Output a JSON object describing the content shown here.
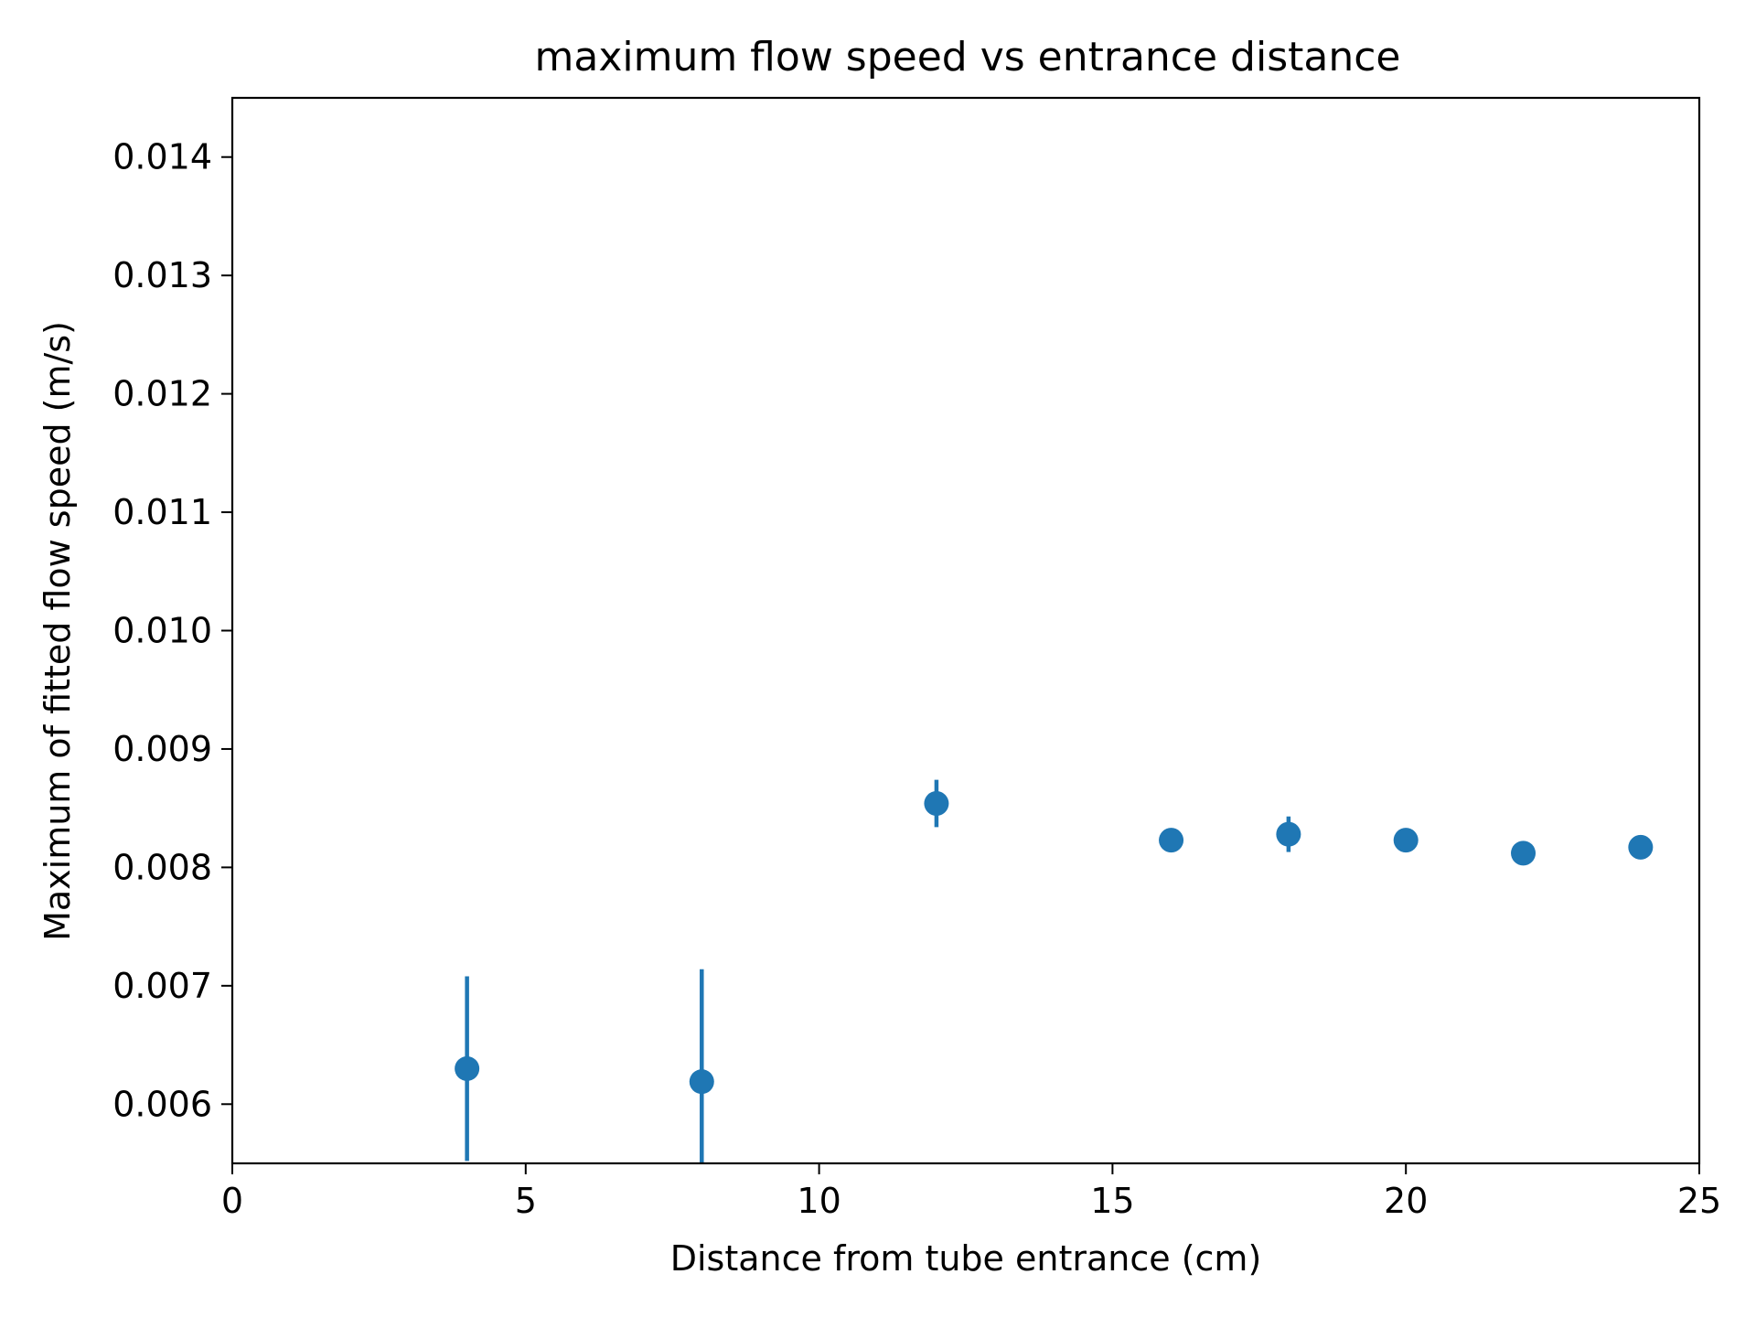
{
  "chart_data": {
    "type": "scatter",
    "title": "maximum flow speed vs entrance distance",
    "xlabel": "Distance from tube entrance (cm)",
    "ylabel": "Maximum of fitted flow speed (m/s)",
    "xlim": [
      0,
      25
    ],
    "ylim": [
      0.0055,
      0.0145
    ],
    "xticks": [
      0,
      5,
      10,
      15,
      20,
      25
    ],
    "xtick_labels": [
      "0",
      "5",
      "10",
      "15",
      "20",
      "25"
    ],
    "yticks": [
      0.006,
      0.007,
      0.008,
      0.009,
      0.01,
      0.011,
      0.012,
      0.013,
      0.014
    ],
    "ytick_labels": [
      "0.006",
      "0.007",
      "0.008",
      "0.009",
      "0.010",
      "0.011",
      "0.012",
      "0.013",
      "0.014"
    ],
    "grid": false,
    "series": [
      {
        "color": "#1f77b4",
        "x": [
          4,
          8,
          12,
          16,
          18,
          20,
          22,
          24
        ],
        "y": [
          0.0063,
          0.00619,
          0.00854,
          0.00823,
          0.00828,
          0.00823,
          0.00812,
          0.00817
        ],
        "yerr": [
          0.00078,
          0.00095,
          0.0002,
          3e-05,
          0.00015,
          3e-05,
          2e-05,
          2e-05
        ]
      }
    ]
  }
}
